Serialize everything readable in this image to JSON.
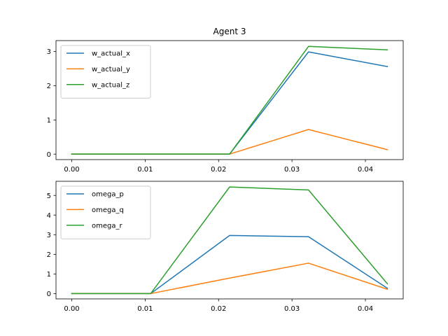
{
  "chart_data": [
    {
      "type": "line",
      "title": "Agent 3",
      "x": [
        0.0,
        0.01075,
        0.0215,
        0.03225,
        0.043
      ],
      "xlim": [
        -0.00215,
        0.04515
      ],
      "ylim": [
        -0.16,
        3.32
      ],
      "xticks": [
        0.0,
        0.01,
        0.02,
        0.03,
        0.04
      ],
      "xtick_labels": [
        "0.00",
        "0.01",
        "0.02",
        "0.03",
        "0.04"
      ],
      "yticks": [
        0,
        1,
        2,
        3
      ],
      "ytick_labels": [
        "0",
        "1",
        "2",
        "3"
      ],
      "grid": false,
      "legend_position": "upper-left",
      "series": [
        {
          "name": "w_actual_x",
          "color": "#1f77b4",
          "values": [
            0,
            0,
            0,
            2.99,
            2.56
          ]
        },
        {
          "name": "w_actual_y",
          "color": "#ff7f0e",
          "values": [
            0,
            0,
            0,
            0.72,
            0.13
          ]
        },
        {
          "name": "w_actual_z",
          "color": "#2ca02c",
          "values": [
            0,
            0,
            0,
            3.15,
            3.05
          ]
        }
      ]
    },
    {
      "type": "line",
      "title": "",
      "x": [
        0.0,
        0.01075,
        0.0215,
        0.03225,
        0.043
      ],
      "xlim": [
        -0.00215,
        0.04515
      ],
      "ylim": [
        -0.27,
        5.72
      ],
      "xticks": [
        0.0,
        0.01,
        0.02,
        0.03,
        0.04
      ],
      "xtick_labels": [
        "0.00",
        "0.01",
        "0.02",
        "0.03",
        "0.04"
      ],
      "yticks": [
        0,
        1,
        2,
        3,
        4,
        5
      ],
      "ytick_labels": [
        "0",
        "1",
        "2",
        "3",
        "4",
        "5"
      ],
      "grid": false,
      "legend_position": "upper-left",
      "series": [
        {
          "name": "omega_p",
          "color": "#1f77b4",
          "values": [
            0,
            0,
            2.96,
            2.9,
            0.27
          ]
        },
        {
          "name": "omega_q",
          "color": "#ff7f0e",
          "values": [
            0,
            0,
            0.79,
            1.55,
            0.22
          ]
        },
        {
          "name": "omega_r",
          "color": "#2ca02c",
          "values": [
            0,
            0,
            5.43,
            5.28,
            0.5
          ]
        }
      ]
    }
  ]
}
